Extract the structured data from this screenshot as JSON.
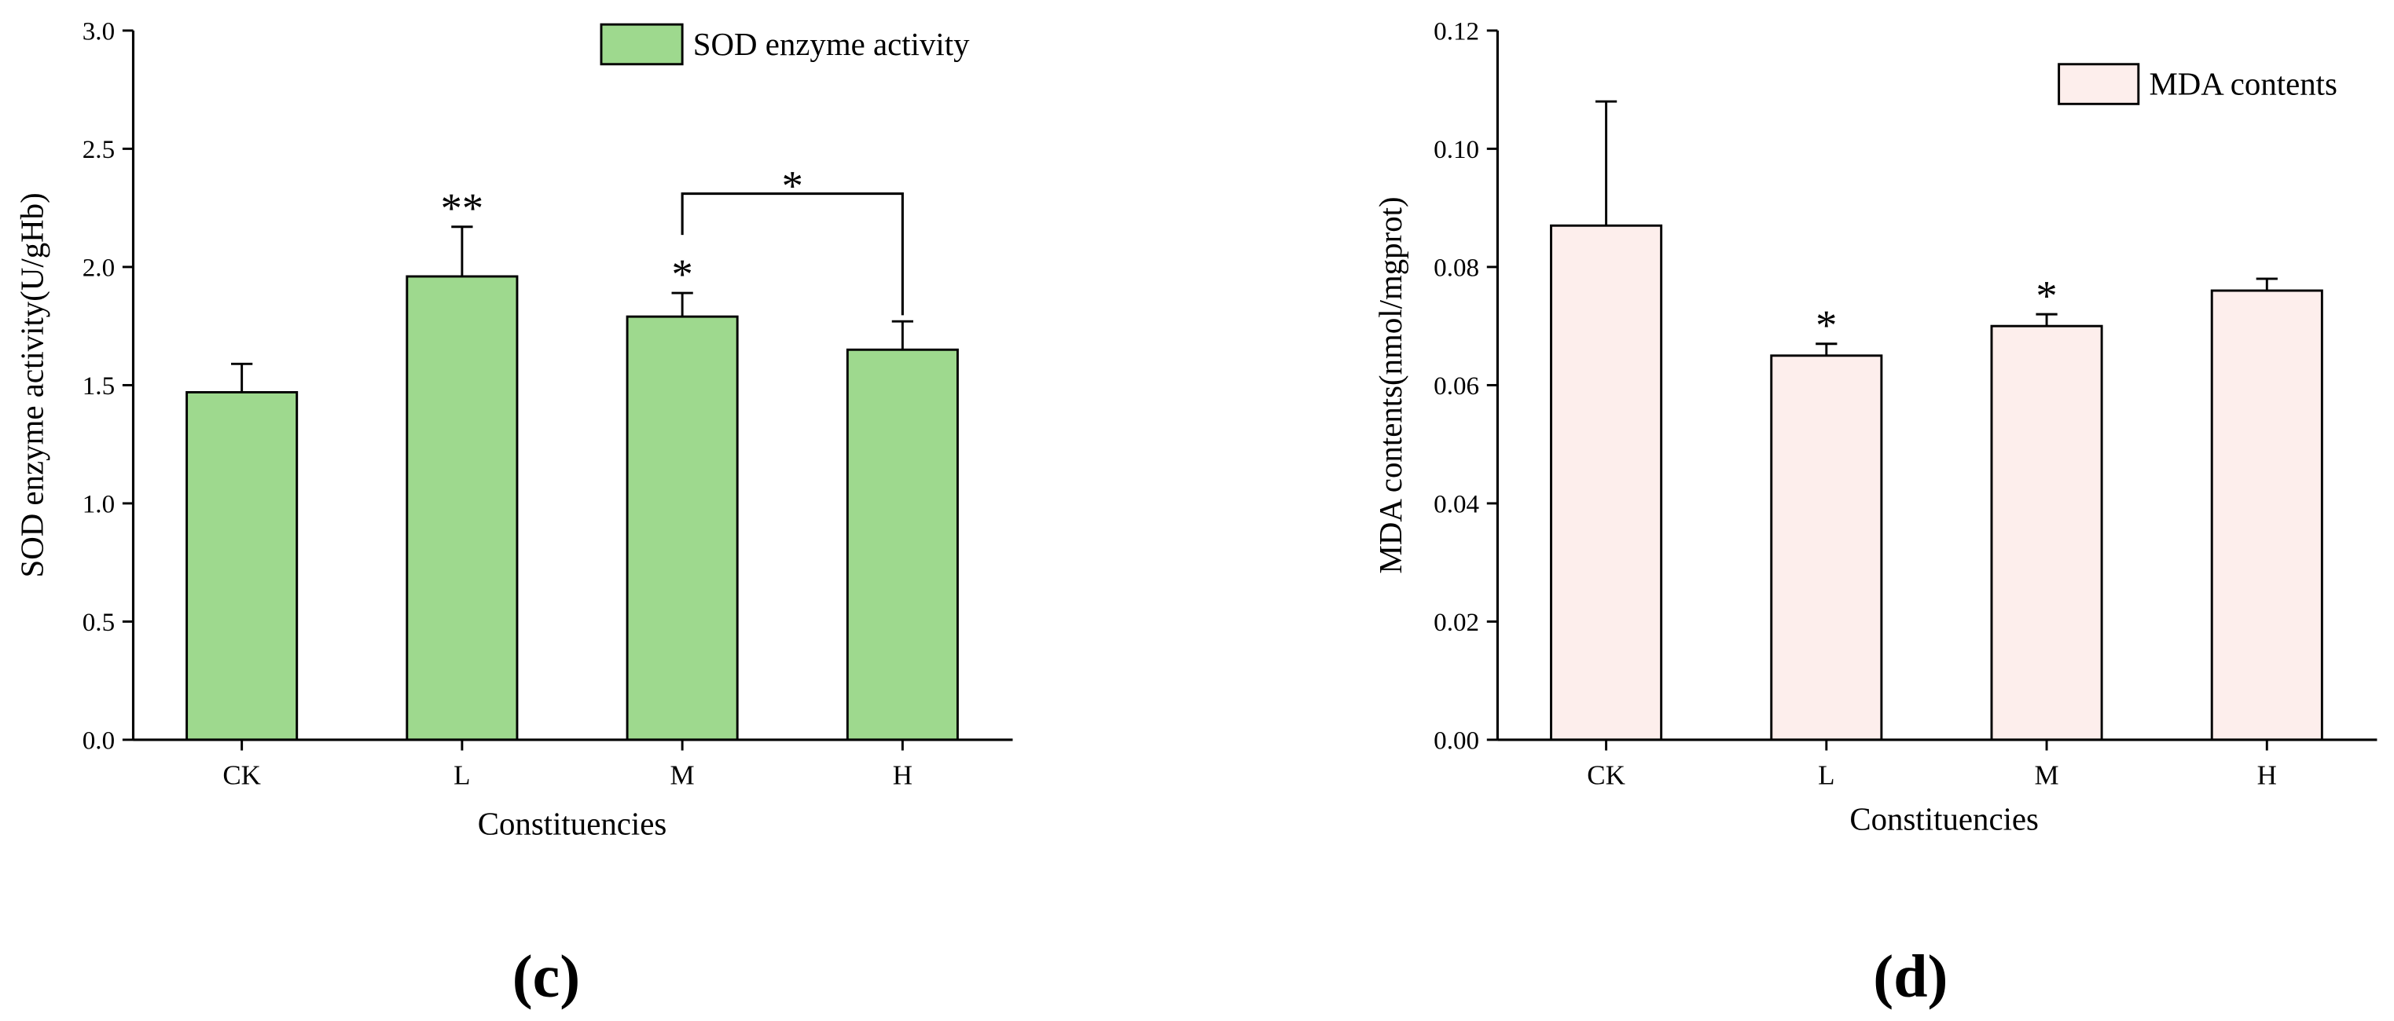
{
  "chart_data": [
    {
      "type": "bar",
      "panel_label": "(c)",
      "categories": [
        "CK",
        "L",
        "M",
        "H"
      ],
      "series": [
        {
          "name": "SOD enzyme activity",
          "values": [
            1.47,
            1.96,
            1.79,
            1.65
          ],
          "errors": [
            0.12,
            0.21,
            0.1,
            0.12
          ],
          "color": "#9ED98E"
        }
      ],
      "xlabel": "Constituencies",
      "ylabel": "SOD enzyme activity(U/gHb)",
      "ylim": [
        0,
        3.0
      ],
      "yticks": [
        {
          "value": 0.0,
          "label": "0.0"
        },
        {
          "value": 0.5,
          "label": "0.5"
        },
        {
          "value": 1.0,
          "label": "1.0"
        },
        {
          "value": 1.5,
          "label": "1.5"
        },
        {
          "value": 2.0,
          "label": "2.0"
        },
        {
          "value": 2.5,
          "label": "2.5"
        },
        {
          "value": 3.0,
          "label": "3.0"
        }
      ],
      "grid": false,
      "legend_position": "top-right",
      "significance": [
        {
          "category": "L",
          "mark": "**"
        },
        {
          "category": "M",
          "mark": "*"
        }
      ],
      "comparisons": [
        {
          "from": "M",
          "to": "H",
          "mark": "*"
        }
      ]
    },
    {
      "type": "bar",
      "panel_label": "(d)",
      "categories": [
        "CK",
        "L",
        "M",
        "H"
      ],
      "series": [
        {
          "name": "MDA contents",
          "values": [
            0.087,
            0.065,
            0.07,
            0.076
          ],
          "errors": [
            0.021,
            0.002,
            0.002,
            0.002
          ],
          "color": "#FDEEEC"
        }
      ],
      "xlabel": "Constituencies",
      "ylabel": "MDA contents(nmol/mgprot)",
      "ylim": [
        0,
        0.12
      ],
      "yticks": [
        {
          "value": 0.0,
          "label": "0.00"
        },
        {
          "value": 0.02,
          "label": "0.02"
        },
        {
          "value": 0.04,
          "label": "0.04"
        },
        {
          "value": 0.06,
          "label": "0.06"
        },
        {
          "value": 0.08,
          "label": "0.08"
        },
        {
          "value": 0.1,
          "label": "0.10"
        },
        {
          "value": 0.12,
          "label": "0.12"
        }
      ],
      "grid": false,
      "legend_position": "top-right",
      "significance": [
        {
          "category": "L",
          "mark": "*"
        },
        {
          "category": "M",
          "mark": "*"
        }
      ],
      "comparisons": []
    }
  ]
}
